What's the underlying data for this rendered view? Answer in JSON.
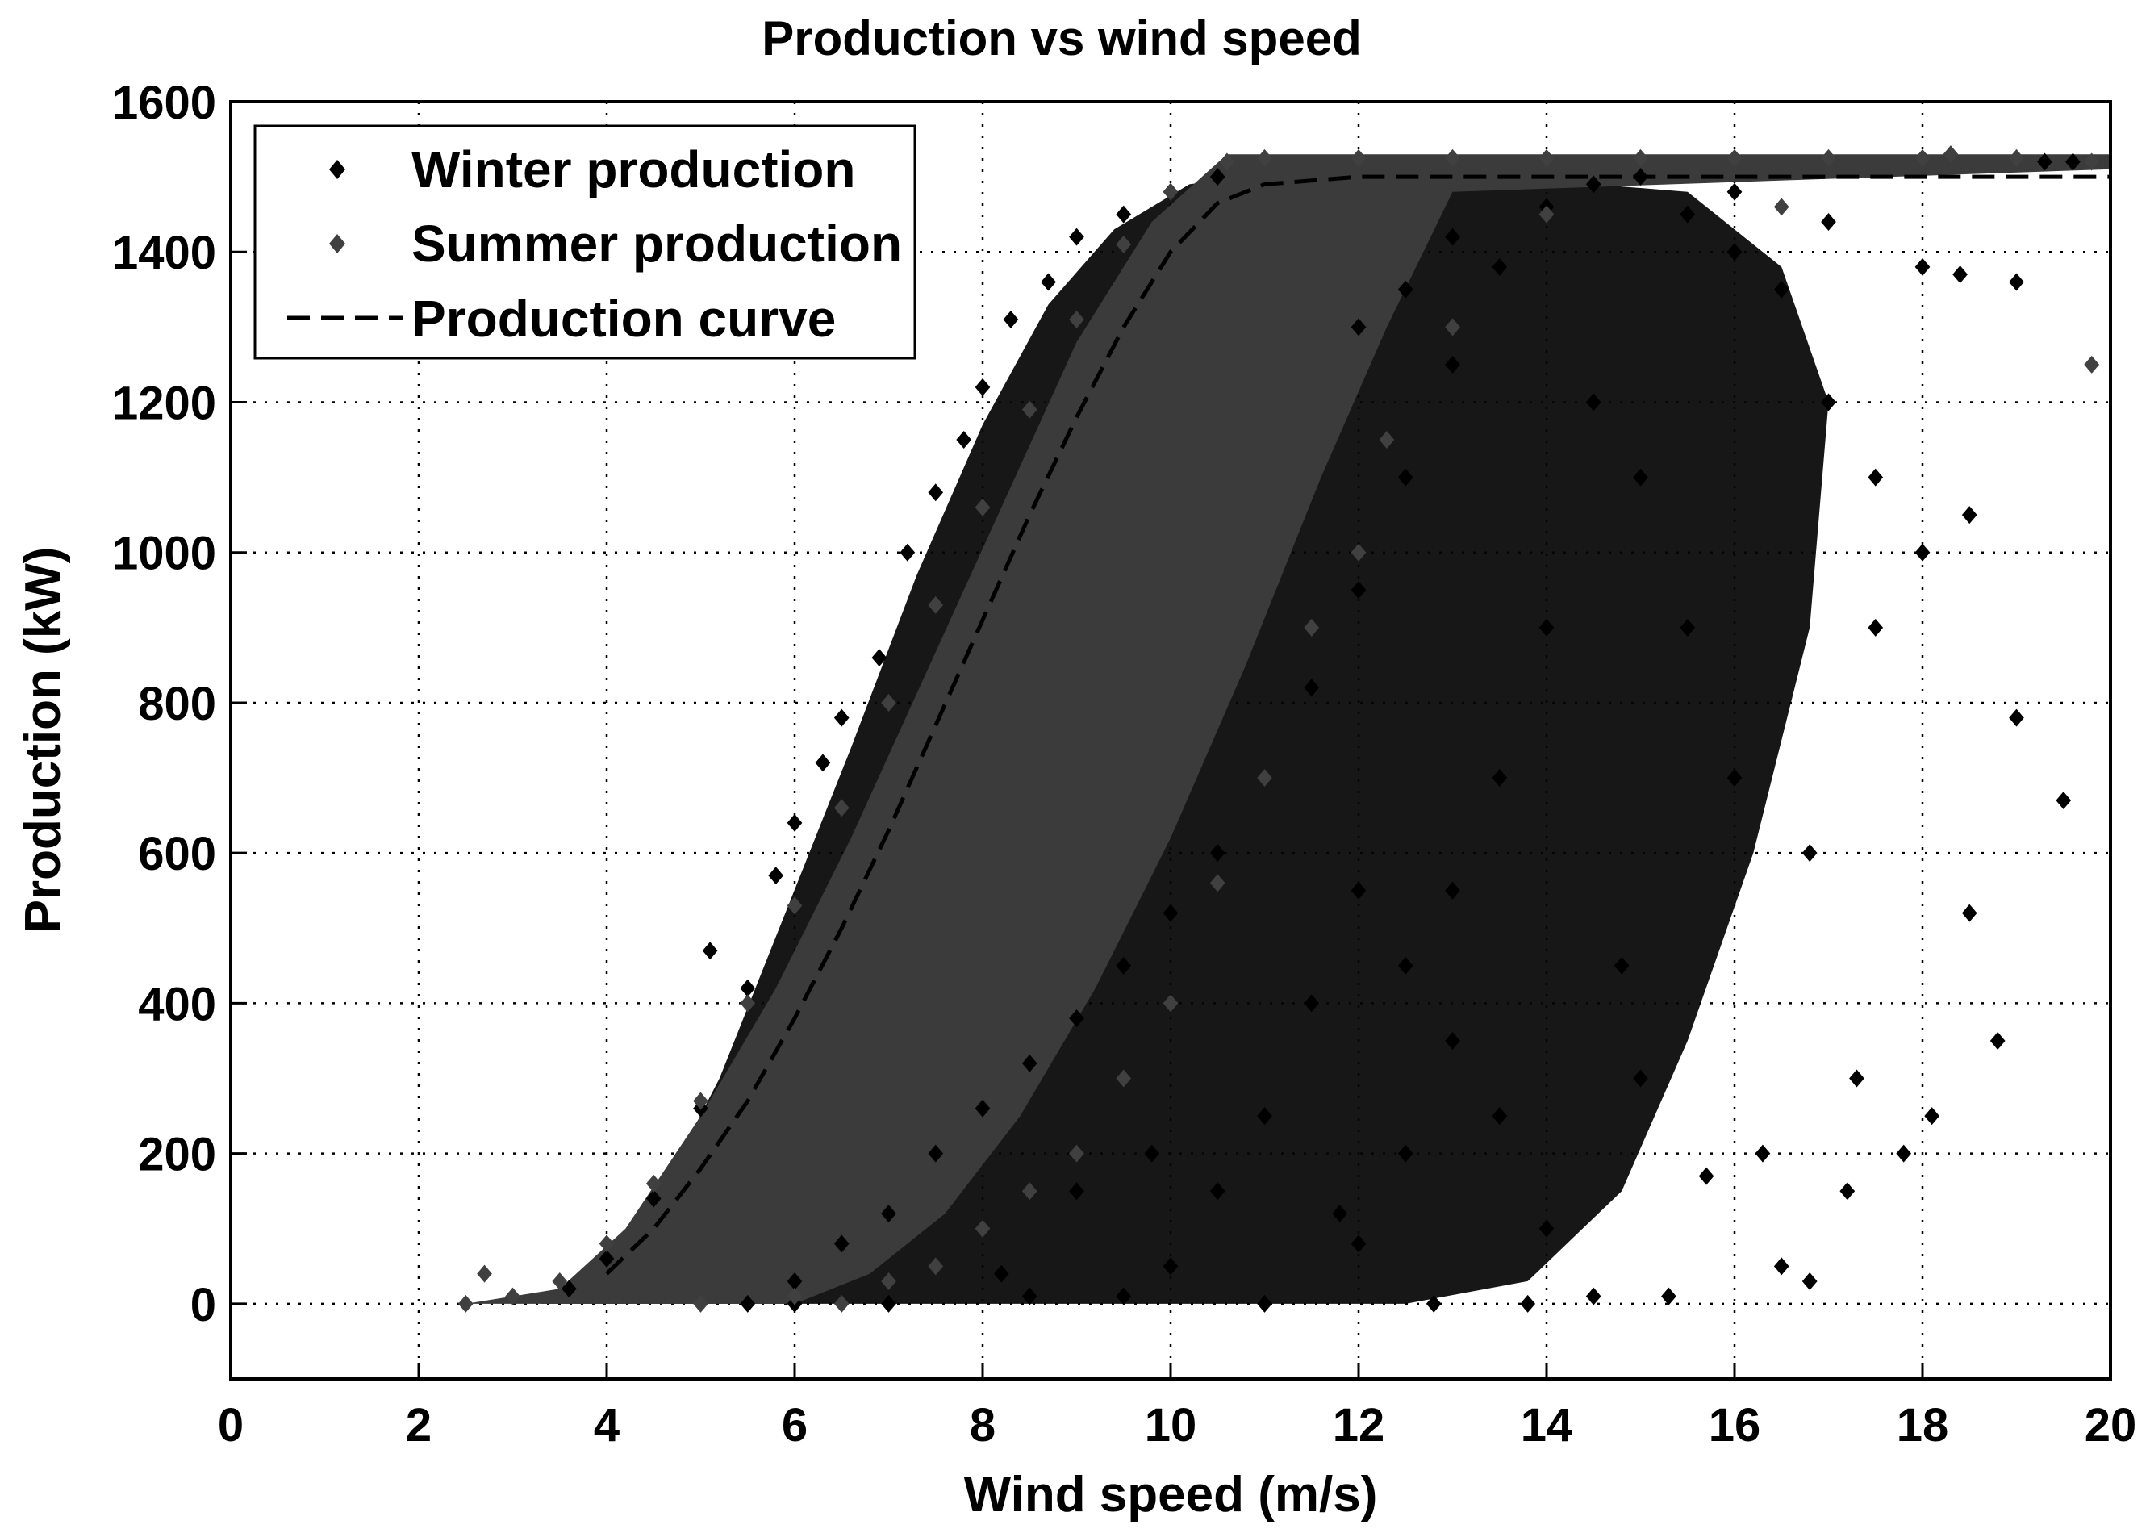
{
  "chart_data": {
    "type": "scatter",
    "title": "Production vs wind speed",
    "xlabel": "Wind speed (m/s)",
    "ylabel": "Production (kW)",
    "xlim": [
      0,
      20
    ],
    "ylim": [
      -100,
      1600
    ],
    "xticks": [
      0,
      2,
      4,
      6,
      8,
      10,
      12,
      14,
      16,
      18,
      20
    ],
    "xtick_labels": [
      "0",
      "2",
      "4",
      "6",
      "8",
      "10",
      "12",
      "14",
      "16",
      "18",
      "20"
    ],
    "yticks": [
      0,
      200,
      400,
      600,
      800,
      1000,
      1200,
      1400,
      1600
    ],
    "ytick_labels": [
      "0",
      "200",
      "400",
      "600",
      "800",
      "1000",
      "1200",
      "1400",
      "1600"
    ],
    "grid": true,
    "legend_position": "top-left",
    "series": [
      {
        "name": "Winter production",
        "kind": "scatter",
        "marker": "diamond",
        "color": "#000000",
        "points": [
          [
            3.6,
            20
          ],
          [
            4.0,
            60
          ],
          [
            4.5,
            140
          ],
          [
            5.0,
            260
          ],
          [
            5.1,
            470
          ],
          [
            5.5,
            420
          ],
          [
            5.8,
            570
          ],
          [
            6.0,
            640
          ],
          [
            6.3,
            720
          ],
          [
            6.5,
            780
          ],
          [
            6.9,
            860
          ],
          [
            7.2,
            1000
          ],
          [
            7.5,
            1080
          ],
          [
            7.8,
            1150
          ],
          [
            8.0,
            1220
          ],
          [
            8.3,
            1310
          ],
          [
            8.7,
            1360
          ],
          [
            9.0,
            1420
          ],
          [
            9.5,
            1450
          ],
          [
            10.0,
            1480
          ],
          [
            10.5,
            1500
          ],
          [
            5.5,
            0
          ],
          [
            6.0,
            30
          ],
          [
            6.5,
            80
          ],
          [
            7.0,
            120
          ],
          [
            7.5,
            200
          ],
          [
            8.0,
            260
          ],
          [
            8.5,
            320
          ],
          [
            9.0,
            380
          ],
          [
            9.5,
            450
          ],
          [
            10.0,
            520
          ],
          [
            10.5,
            600
          ],
          [
            11.0,
            700
          ],
          [
            11.5,
            820
          ],
          [
            12.0,
            950
          ],
          [
            12.5,
            1100
          ],
          [
            13.0,
            1250
          ],
          [
            13.5,
            1380
          ],
          [
            14.0,
            1460
          ],
          [
            14.5,
            1490
          ],
          [
            15.0,
            1500
          ],
          [
            15.5,
            1450
          ],
          [
            16.0,
            1400
          ],
          [
            16.5,
            1350
          ],
          [
            17.0,
            1200
          ],
          [
            17.5,
            1100
          ],
          [
            18.0,
            1000
          ],
          [
            18.5,
            1050
          ],
          [
            19.0,
            780
          ],
          [
            19.5,
            670
          ],
          [
            18.8,
            350
          ],
          [
            18.5,
            520
          ],
          [
            17.8,
            200
          ],
          [
            18.1,
            250
          ],
          [
            17.2,
            150
          ],
          [
            16.8,
            30
          ],
          [
            16.3,
            200
          ],
          [
            15.7,
            170
          ],
          [
            15.3,
            10
          ],
          [
            14.5,
            10
          ],
          [
            14.0,
            100
          ],
          [
            13.5,
            250
          ],
          [
            13.0,
            350
          ],
          [
            12.5,
            450
          ],
          [
            12.0,
            550
          ],
          [
            11.5,
            400
          ],
          [
            11.0,
            250
          ],
          [
            10.5,
            150
          ],
          [
            10.0,
            50
          ],
          [
            9.5,
            10
          ],
          [
            12.0,
            1300
          ],
          [
            12.5,
            1350
          ],
          [
            13.0,
            1420
          ],
          [
            16.0,
            1480
          ],
          [
            17.0,
            1440
          ],
          [
            18.0,
            1380
          ],
          [
            19.0,
            1360
          ],
          [
            19.3,
            1520
          ],
          [
            19.6,
            1520
          ],
          [
            18.4,
            1370
          ],
          [
            17.5,
            900
          ],
          [
            16.8,
            600
          ],
          [
            16.0,
            700
          ],
          [
            15.5,
            900
          ],
          [
            15.0,
            1100
          ],
          [
            14.5,
            1200
          ],
          [
            14.0,
            900
          ],
          [
            13.5,
            700
          ],
          [
            13.0,
            550
          ],
          [
            12.5,
            200
          ],
          [
            12.0,
            80
          ],
          [
            11.0,
            0
          ],
          [
            8.5,
            10
          ],
          [
            7.0,
            0
          ],
          [
            6.0,
            0
          ],
          [
            16.5,
            50
          ],
          [
            17.3,
            300
          ],
          [
            15.0,
            300
          ],
          [
            14.8,
            450
          ],
          [
            13.8,
            0
          ],
          [
            12.8,
            0
          ],
          [
            11.8,
            120
          ],
          [
            9.8,
            200
          ],
          [
            9.0,
            150
          ],
          [
            8.2,
            40
          ]
        ]
      },
      {
        "name": "Summer production",
        "kind": "scatter",
        "marker": "diamond",
        "color": "#404040",
        "points": [
          [
            2.5,
            0
          ],
          [
            2.7,
            40
          ],
          [
            3.0,
            10
          ],
          [
            3.5,
            30
          ],
          [
            4.0,
            80
          ],
          [
            4.5,
            160
          ],
          [
            5.0,
            270
          ],
          [
            5.5,
            400
          ],
          [
            6.0,
            530
          ],
          [
            6.5,
            660
          ],
          [
            7.0,
            800
          ],
          [
            7.5,
            930
          ],
          [
            8.0,
            1060
          ],
          [
            8.5,
            1190
          ],
          [
            9.0,
            1310
          ],
          [
            9.5,
            1410
          ],
          [
            10.0,
            1480
          ],
          [
            10.6,
            1520
          ],
          [
            11.0,
            1525
          ],
          [
            12.0,
            1525
          ],
          [
            13.0,
            1525
          ],
          [
            14.0,
            1525
          ],
          [
            15.0,
            1525
          ],
          [
            16.0,
            1525
          ],
          [
            17.0,
            1525
          ],
          [
            18.0,
            1525
          ],
          [
            19.0,
            1525
          ],
          [
            19.8,
            1520
          ],
          [
            19.8,
            1250
          ],
          [
            18.3,
            1530
          ],
          [
            16.5,
            1460
          ],
          [
            5.0,
            0
          ],
          [
            6.0,
            10
          ],
          [
            7.0,
            30
          ],
          [
            8.0,
            100
          ],
          [
            9.0,
            200
          ],
          [
            10.0,
            400
          ],
          [
            11.0,
            700
          ],
          [
            12.0,
            1000
          ],
          [
            13.0,
            1300
          ],
          [
            14.0,
            1450
          ],
          [
            12.3,
            1150
          ],
          [
            11.5,
            900
          ],
          [
            10.5,
            560
          ],
          [
            9.5,
            300
          ],
          [
            8.5,
            150
          ],
          [
            7.5,
            50
          ],
          [
            6.5,
            0
          ]
        ]
      },
      {
        "name": "Production curve",
        "kind": "line",
        "style": "dashed",
        "color": "#000000",
        "points": [
          [
            4.0,
            40
          ],
          [
            4.5,
            100
          ],
          [
            5.0,
            180
          ],
          [
            5.5,
            270
          ],
          [
            6.0,
            380
          ],
          [
            6.5,
            500
          ],
          [
            7.0,
            630
          ],
          [
            7.5,
            770
          ],
          [
            8.0,
            910
          ],
          [
            8.5,
            1050
          ],
          [
            9.0,
            1180
          ],
          [
            9.5,
            1300
          ],
          [
            10.0,
            1400
          ],
          [
            10.5,
            1465
          ],
          [
            11.0,
            1490
          ],
          [
            11.5,
            1495
          ],
          [
            12.0,
            1500
          ],
          [
            14.0,
            1500
          ],
          [
            16.0,
            1500
          ],
          [
            18.0,
            1500
          ],
          [
            20.0,
            1500
          ]
        ]
      }
    ],
    "legend": [
      "Winter production",
      "Summer production",
      "Production curve"
    ]
  }
}
